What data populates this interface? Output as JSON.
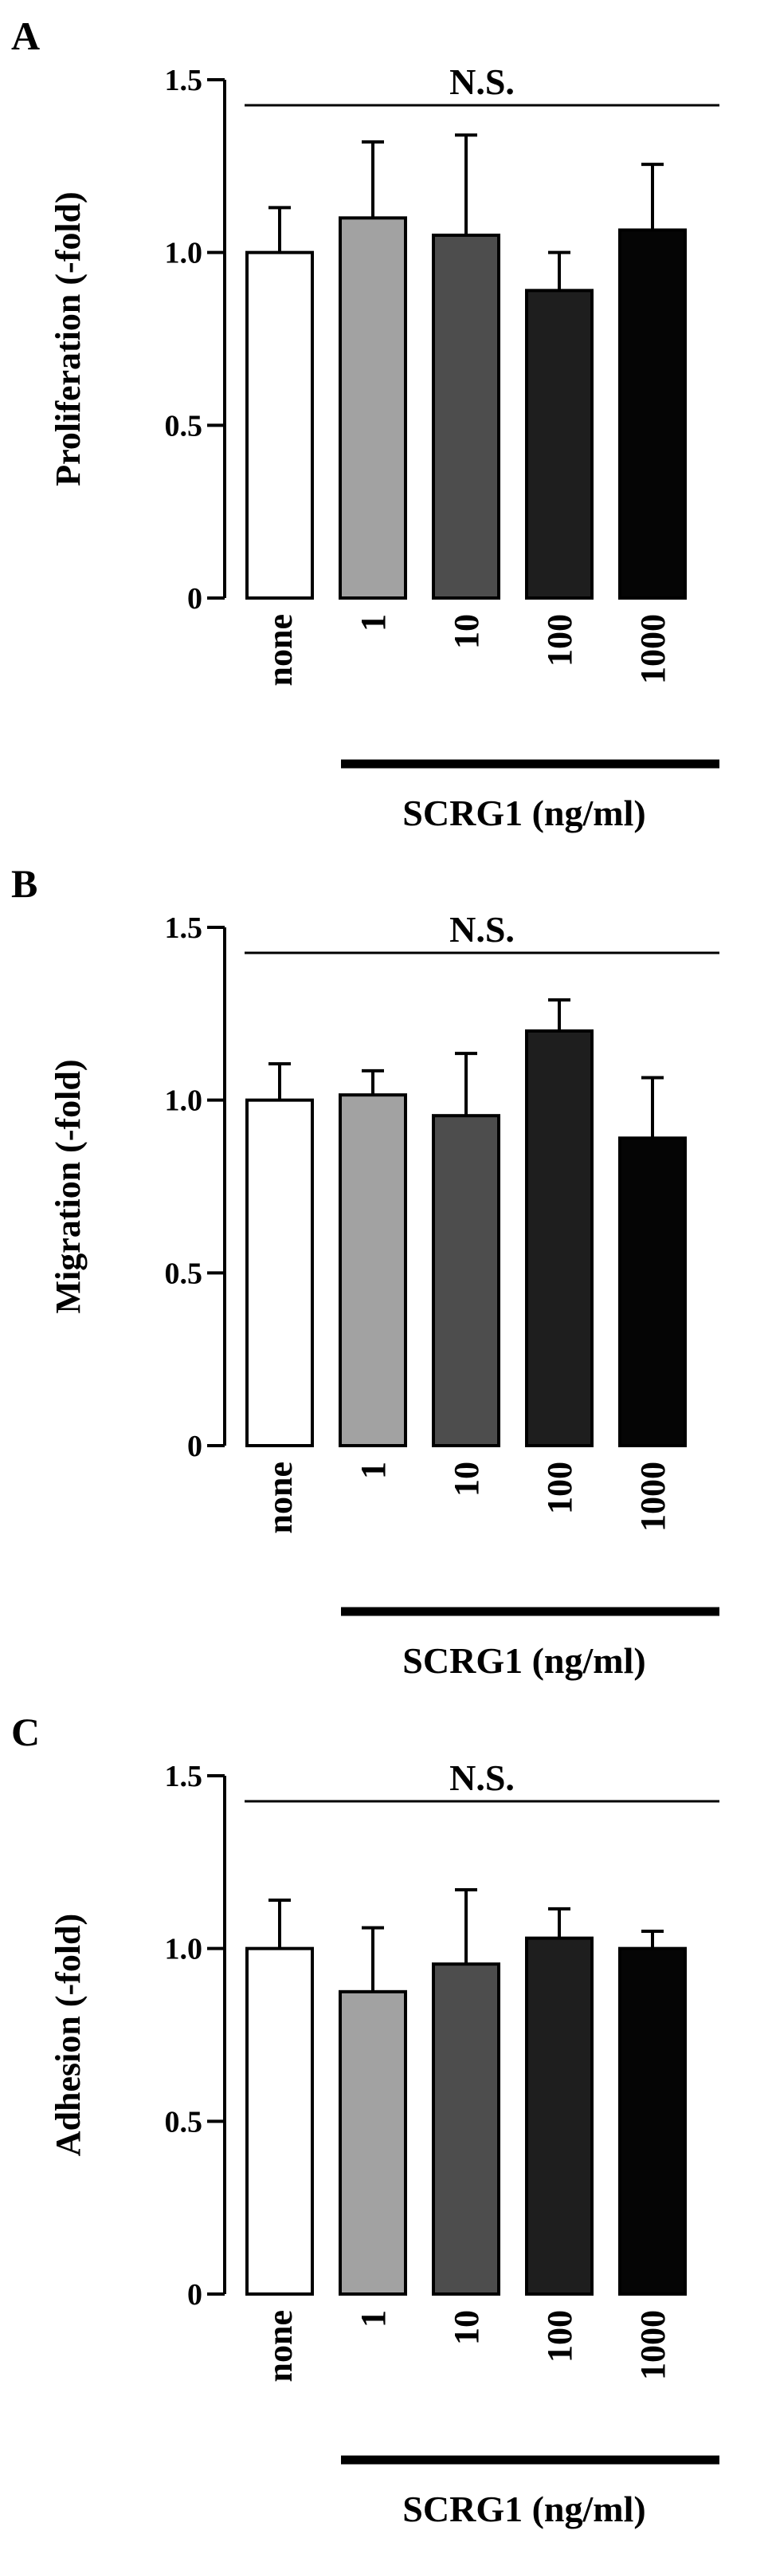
{
  "figure": {
    "treatment_label": "SCRG1 (ng/ml)"
  },
  "chart_data": [
    {
      "type": "bar",
      "panel_letter": "A",
      "ylabel": "Proliferation (-fold)",
      "categories": [
        "none",
        "1",
        "10",
        "100",
        "1000"
      ],
      "values": [
        1.0,
        1.1,
        1.05,
        0.89,
        1.065
      ],
      "errors": [
        0.13,
        0.22,
        0.29,
        0.11,
        0.19
      ],
      "ylim": [
        0,
        1.5
      ],
      "yticks": [
        "0",
        "0.5",
        "1.0",
        "1.5"
      ],
      "significance": "N.S.",
      "bar_colors": [
        "#ffffff",
        "#a2a2a2",
        "#4d4d4d",
        "#1e1e1e",
        "#050505"
      ],
      "grid": false
    },
    {
      "type": "bar",
      "panel_letter": "B",
      "ylabel": "Migration (-fold)",
      "categories": [
        "none",
        "1",
        "10",
        "100",
        "1000"
      ],
      "values": [
        1.0,
        1.015,
        0.955,
        1.2,
        0.89
      ],
      "errors": [
        0.105,
        0.07,
        0.18,
        0.09,
        0.175
      ],
      "ylim": [
        0,
        1.5
      ],
      "yticks": [
        "0",
        "0.5",
        "1.0",
        "1.5"
      ],
      "significance": "N.S.",
      "bar_colors": [
        "#ffffff",
        "#a2a2a2",
        "#4d4d4d",
        "#1e1e1e",
        "#050505"
      ],
      "grid": false
    },
    {
      "type": "bar",
      "panel_letter": "C",
      "ylabel": "Adhesion (-fold)",
      "categories": [
        "none",
        "1",
        "10",
        "100",
        "1000"
      ],
      "values": [
        1.0,
        0.875,
        0.955,
        1.03,
        1.0
      ],
      "errors": [
        0.14,
        0.185,
        0.215,
        0.085,
        0.05
      ],
      "ylim": [
        0,
        1.5
      ],
      "yticks": [
        "0",
        "0.5",
        "1.0",
        "1.5"
      ],
      "significance": "N.S.",
      "bar_colors": [
        "#ffffff",
        "#a2a2a2",
        "#4d4d4d",
        "#1e1e1e",
        "#050505"
      ],
      "grid": false
    }
  ]
}
